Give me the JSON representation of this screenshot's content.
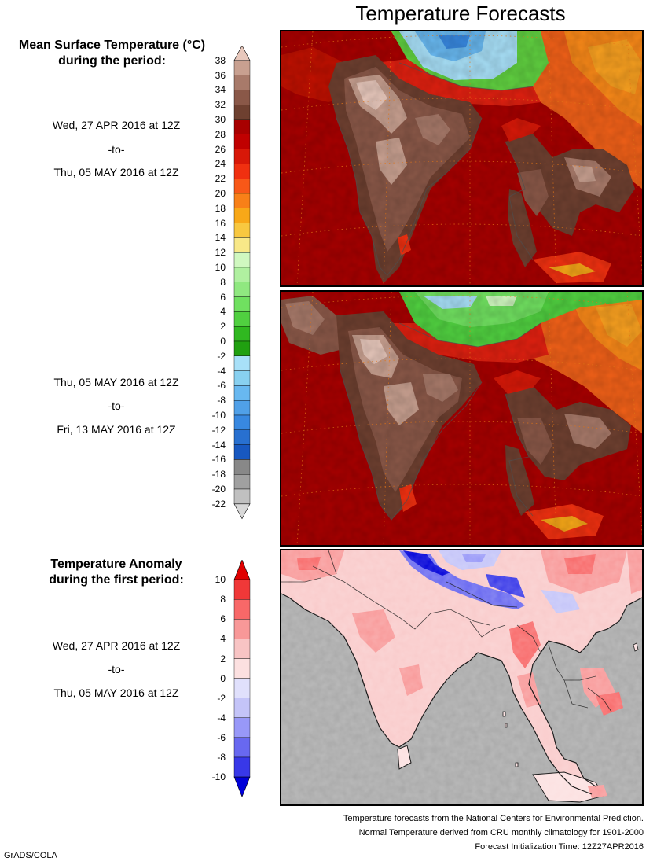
{
  "page": {
    "title": "Temperature Forecasts",
    "grads_credit": "GrADS/COLA"
  },
  "mean_section": {
    "heading_line1": "Mean Surface Temperature (°C)",
    "heading_line2": "during the period:",
    "period1": {
      "start": "Wed, 27 APR 2016 at 12Z",
      "sep": "-to-",
      "end": "Thu, 05 MAY 2016 at 12Z"
    },
    "period2": {
      "start": "Thu, 05 MAY 2016 at 12Z",
      "sep": "-to-",
      "end": "Fri, 13 MAY 2016 at 12Z"
    },
    "colorbar": {
      "labels": [
        "38",
        "36",
        "34",
        "32",
        "30",
        "28",
        "26",
        "24",
        "22",
        "20",
        "18",
        "16",
        "14",
        "12",
        "10",
        "8",
        "6",
        "4",
        "2",
        "0",
        "-2",
        "-4",
        "-6",
        "-8",
        "-10",
        "-12",
        "-14",
        "-16",
        "-18",
        "-20",
        "-22"
      ],
      "colors": [
        "#e8c8bc",
        "#c8a090",
        "#a87a6a",
        "#8a5848",
        "#6e4030",
        "#a80000",
        "#c00000",
        "#d81808",
        "#f03010",
        "#f85818",
        "#f88018",
        "#f8a818",
        "#f8c840",
        "#f8e888",
        "#d0f8c0",
        "#b0f0a0",
        "#90e880",
        "#70e060",
        "#50d040",
        "#30b820",
        "#20a010",
        "#a8e0f8",
        "#88d0f0",
        "#68b8f0",
        "#50a0e8",
        "#3888e0",
        "#2870d0",
        "#1858c0",
        "#888888",
        "#a0a0a0",
        "#c0c0c0",
        "#d8d8d8"
      ]
    }
  },
  "anomaly_section": {
    "heading_line1": "Temperature Anomaly",
    "heading_line2": "during the first period:",
    "period": {
      "start": "Wed, 27 APR 2016 at 12Z",
      "sep": "-to-",
      "end": "Thu, 05 MAY 2016 at 12Z"
    },
    "colorbar": {
      "labels": [
        "10",
        "8",
        "6",
        "4",
        "2",
        "0",
        "-2",
        "-4",
        "-6",
        "-8",
        "-10"
      ],
      "colors": [
        "#e00000",
        "#f03838",
        "#f86868",
        "#f89898",
        "#f8c4c4",
        "#fce0e0",
        "#e0e0fc",
        "#c4c4f8",
        "#9898f8",
        "#6868f0",
        "#3838e8",
        "#0000d8"
      ]
    }
  },
  "footer": {
    "line1": "Temperature forecasts from the National Centers for Environmental Prediction.",
    "line2": "Normal Temperature derived from CRU monthly climatology for 1901-2000",
    "line3": "Forecast Initialization Time: 12Z27APR2016"
  }
}
